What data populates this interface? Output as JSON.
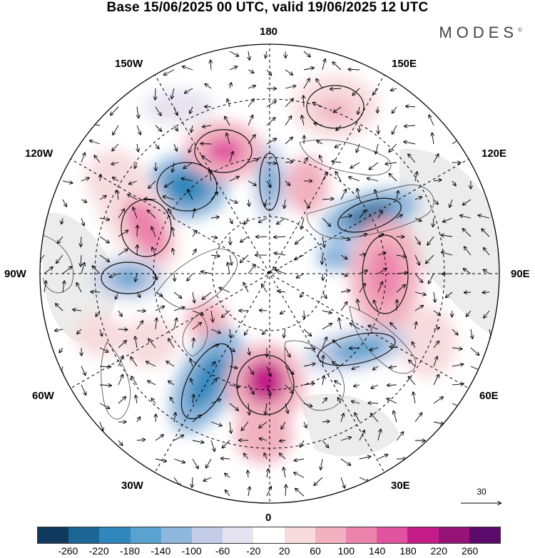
{
  "title": "Base 15/06/2025 00 UTC, valid 19/06/2025 12 UTC",
  "brand": "MODES",
  "brand_mark": "©",
  "longitude_labels": {
    "top": "180",
    "bottom": "0",
    "left": "90W",
    "right": "90E",
    "upper_left_inner": "150W",
    "upper_right_inner": "150E",
    "upper_left_outer": "120W",
    "upper_right_outer": "120E",
    "lower_left_outer": "60W",
    "lower_right_outer": "60E",
    "lower_left_inner": "30W",
    "lower_right_inner": "30E"
  },
  "reference_vector": {
    "label": "30"
  },
  "colorbar": {
    "colors": [
      "#0f3a5e",
      "#1b6694",
      "#2f87bb",
      "#5aa2cf",
      "#8fb6dc",
      "#c3cce6",
      "#e6e3f0",
      "#ffffff",
      "#f7dbde",
      "#f1b1c0",
      "#ec83ab",
      "#e0539f",
      "#c41d8a",
      "#961277",
      "#5c0a6b"
    ],
    "ticks": [
      "-260",
      "-220",
      "-180",
      "-140",
      "-100",
      "-60",
      "-20",
      "20",
      "60",
      "100",
      "140",
      "180",
      "220",
      "260"
    ]
  },
  "anomalies": [
    {
      "name": "anomaly-north-pacific-blue",
      "sign": "negative"
    },
    {
      "name": "anomaly-aleutian-pink",
      "sign": "positive"
    },
    {
      "name": "anomaly-east-siberia-blue",
      "sign": "negative"
    },
    {
      "name": "anomaly-central-asia-pink",
      "sign": "positive"
    },
    {
      "name": "anomaly-north-atlantic-blue",
      "sign": "negative"
    },
    {
      "name": "anomaly-europe-pink",
      "sign": "positive"
    },
    {
      "name": "anomaly-west-russia-blue",
      "sign": "negative"
    },
    {
      "name": "anomaly-canada-pink",
      "sign": "positive"
    },
    {
      "name": "anomaly-hudson-blue",
      "sign": "negative"
    }
  ]
}
